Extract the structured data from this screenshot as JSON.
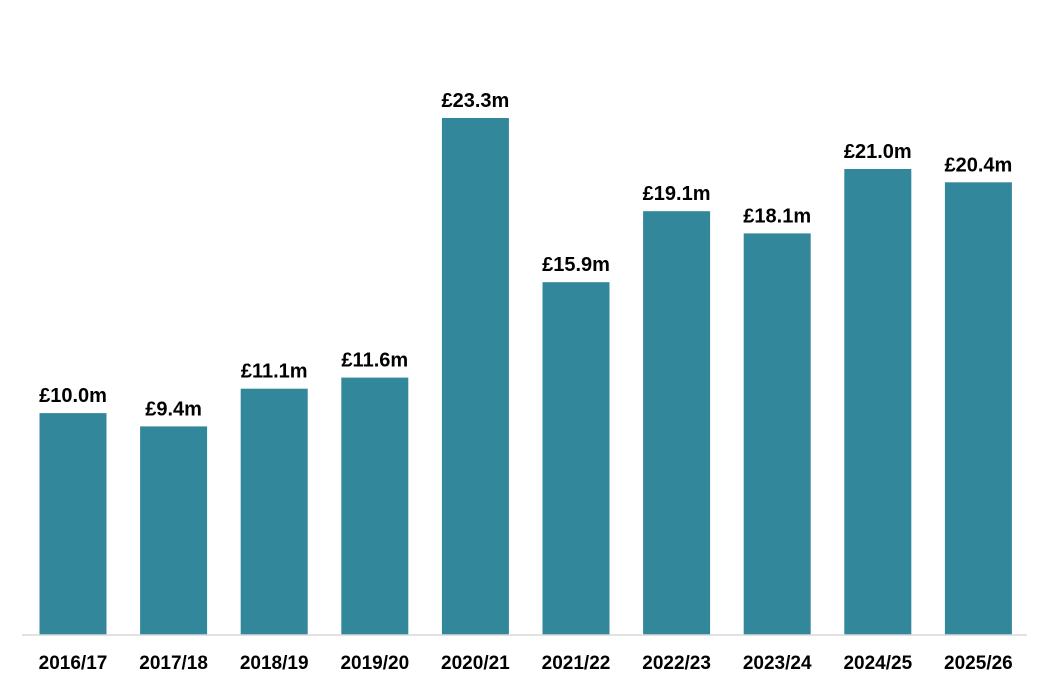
{
  "chart_data": {
    "type": "bar",
    "title": "",
    "xlabel": "",
    "ylabel": "",
    "categories": [
      "2016/17",
      "2017/18",
      "2018/19",
      "2019/20",
      "2020/21",
      "2021/22",
      "2022/23",
      "2023/24",
      "2024/25",
      "2025/26"
    ],
    "values": [
      10.0,
      9.4,
      11.1,
      11.6,
      23.3,
      15.9,
      19.1,
      18.1,
      21.0,
      20.4
    ],
    "data_labels": [
      "£10.0m",
      "£9.4m",
      "£11.1m",
      "£11.6m",
      "£23.3m",
      "£15.9m",
      "£19.1m",
      "£18.1m",
      "£21.0m",
      "£20.4m"
    ],
    "ylim": [
      0,
      23.3
    ],
    "grid": false,
    "legend": "none",
    "bar_color": "#33879b",
    "axis_color": "#d9d9d9"
  }
}
